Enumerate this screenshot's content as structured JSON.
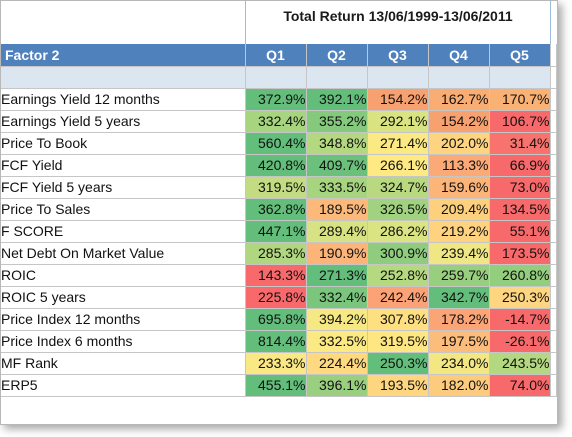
{
  "title": "Total Return 13/06/1999-13/06/2011",
  "header": {
    "factor_label": "Factor 2",
    "quintiles": [
      "Q1",
      "Q2",
      "Q3",
      "Q4",
      "Q5"
    ]
  },
  "rows": [
    {
      "factor": "Earnings Yield 12 months",
      "values": [
        "372.9%",
        "392.1%",
        "154.2%",
        "162.7%",
        "170.7%"
      ],
      "colors": [
        "#63be7b",
        "#63be7b",
        "#f8a170",
        "#f9ad73",
        "#f9b174"
      ]
    },
    {
      "factor": "Earnings Yield 5 years",
      "values": [
        "332.4%",
        "355.2%",
        "292.1%",
        "154.2%",
        "106.7%"
      ],
      "colors": [
        "#a6d47f",
        "#85c97d",
        "#d9e382",
        "#f8a170",
        "#f8696b"
      ]
    },
    {
      "factor": "Price To Book",
      "values": [
        "560.4%",
        "348.8%",
        "271.4%",
        "202.0%",
        "31.4%"
      ],
      "colors": [
        "#63be7b",
        "#b3d880",
        "#fbe983",
        "#fed480",
        "#f8736d"
      ]
    },
    {
      "factor": "FCF Yield",
      "values": [
        "420.8%",
        "409.7%",
        "266.1%",
        "113.3%",
        "66.9%"
      ],
      "colors": [
        "#63be7b",
        "#6bc17c",
        "#fee983",
        "#fba976",
        "#f8696b"
      ]
    },
    {
      "factor": "FCF Yield 5 years",
      "values": [
        "319.5%",
        "333.5%",
        "324.7%",
        "159.6%",
        "73.0%"
      ],
      "colors": [
        "#c3dc81",
        "#a6d47f",
        "#b8d980",
        "#fcb479",
        "#f8696b"
      ]
    },
    {
      "factor": "Price To Sales",
      "values": [
        "362.8%",
        "189.5%",
        "326.5%",
        "209.4%",
        "134.5%"
      ],
      "colors": [
        "#63be7b",
        "#fcb97a",
        "#a1d27f",
        "#fdd07e",
        "#f8696b"
      ]
    },
    {
      "factor": "F SCORE",
      "values": [
        "447.1%",
        "289.4%",
        "286.2%",
        "219.2%",
        "55.1%"
      ],
      "colors": [
        "#63be7b",
        "#d7e382",
        "#dbe482",
        "#fed27f",
        "#f8696b"
      ]
    },
    {
      "factor": "Net Debt On Market Value",
      "values": [
        "285.3%",
        "190.9%",
        "300.9%",
        "239.4%",
        "173.5%"
      ],
      "colors": [
        "#b0d780",
        "#fcb479",
        "#8fcc7e",
        "#eee783",
        "#f8696b"
      ]
    },
    {
      "factor": "ROIC",
      "values": [
        "143.3%",
        "271.3%",
        "252.8%",
        "259.7%",
        "260.8%"
      ],
      "colors": [
        "#f8696b",
        "#63be7b",
        "#b5d980",
        "#98cf7e",
        "#93cd7e"
      ]
    },
    {
      "factor": "ROIC 5 years",
      "values": [
        "225.8%",
        "332.4%",
        "242.4%",
        "342.7%",
        "250.3%"
      ],
      "colors": [
        "#f8696b",
        "#7ac67c",
        "#fba276",
        "#63be7b",
        "#fed580"
      ]
    },
    {
      "factor": "Price Index 12 months",
      "values": [
        "695.8%",
        "394.2%",
        "307.8%",
        "178.2%",
        "-14.7%"
      ],
      "colors": [
        "#63be7b",
        "#f6e883",
        "#fedf81",
        "#fba476",
        "#f8696b"
      ]
    },
    {
      "factor": "Price Index 6 months",
      "values": [
        "814.4%",
        "332.5%",
        "319.5%",
        "197.5%",
        "-26.1%"
      ],
      "colors": [
        "#63be7b",
        "#fbe983",
        "#fee783",
        "#fcbc7b",
        "#f8696b"
      ]
    },
    {
      "factor": "MF Rank",
      "values": [
        "233.3%",
        "224.4%",
        "250.3%",
        "234.0%",
        "243.5%"
      ],
      "colors": [
        "#f9e883",
        "#fed980",
        "#63be7b",
        "#f3e783",
        "#b3d880"
      ]
    },
    {
      "factor": "ERP5",
      "values": [
        "455.1%",
        "396.1%",
        "193.5%",
        "182.0%",
        "74.0%"
      ],
      "colors": [
        "#63be7b",
        "#99cf7e",
        "#fed680",
        "#fccb7d",
        "#f8696b"
      ]
    }
  ]
}
